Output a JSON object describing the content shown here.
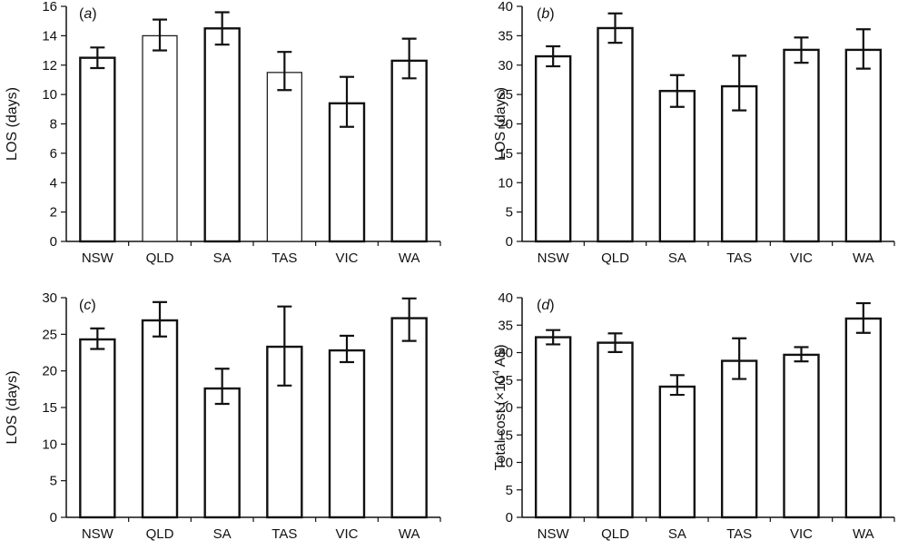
{
  "chart_data": [
    {
      "type": "bar",
      "panel_label": "a",
      "categories": [
        "NSW",
        "QLD",
        "SA",
        "TAS",
        "VIC",
        "WA"
      ],
      "values": [
        12.5,
        14.0,
        14.5,
        11.5,
        9.4,
        12.3
      ],
      "error_low": [
        11.8,
        13.0,
        13.4,
        10.3,
        7.8,
        11.1
      ],
      "error_high": [
        13.2,
        15.1,
        15.6,
        12.9,
        11.2,
        13.8
      ],
      "ylabel": "LOS (days)",
      "ylim": [
        0,
        16
      ],
      "yticks": [
        0,
        2,
        4,
        6,
        8,
        10,
        12,
        14,
        16
      ],
      "grid": false
    },
    {
      "type": "bar",
      "panel_label": "b",
      "categories": [
        "NSW",
        "QLD",
        "SA",
        "TAS",
        "VIC",
        "WA"
      ],
      "values": [
        31.5,
        36.3,
        25.6,
        26.4,
        32.6,
        32.6
      ],
      "error_low": [
        29.8,
        33.8,
        22.9,
        22.3,
        30.4,
        29.4
      ],
      "error_high": [
        33.2,
        38.8,
        28.3,
        31.6,
        34.7,
        36.1
      ],
      "ylabel": "LOS (days)",
      "ylim": [
        0,
        40
      ],
      "yticks": [
        0,
        5,
        10,
        15,
        20,
        25,
        30,
        35,
        40
      ],
      "grid": false
    },
    {
      "type": "bar",
      "panel_label": "c",
      "categories": [
        "NSW",
        "QLD",
        "SA",
        "TAS",
        "VIC",
        "WA"
      ],
      "values": [
        24.3,
        26.9,
        17.6,
        23.3,
        22.8,
        27.2
      ],
      "error_low": [
        23.0,
        24.7,
        15.5,
        18.0,
        21.2,
        24.1
      ],
      "error_high": [
        25.8,
        29.4,
        20.3,
        28.8,
        24.8,
        29.9
      ],
      "ylabel": "LOS (days)",
      "ylim": [
        0,
        30
      ],
      "yticks": [
        0,
        5,
        10,
        15,
        20,
        25,
        30
      ],
      "grid": false
    },
    {
      "type": "bar",
      "panel_label": "d",
      "categories": [
        "NSW",
        "QLD",
        "SA",
        "TAS",
        "VIC",
        "WA"
      ],
      "values": [
        32.8,
        31.8,
        23.8,
        28.5,
        29.6,
        36.2
      ],
      "error_low": [
        31.5,
        30.1,
        22.3,
        25.2,
        28.4,
        33.6
      ],
      "error_high": [
        34.1,
        33.5,
        25.9,
        32.6,
        31.0,
        39.0
      ],
      "ylabel": "Total cost (×10",
      "ylabel_sup": "4",
      "ylabel_suffix": " A$)",
      "ylim": [
        0,
        40
      ],
      "yticks": [
        0,
        5,
        10,
        15,
        20,
        25,
        30,
        35,
        40
      ],
      "grid": false
    }
  ]
}
